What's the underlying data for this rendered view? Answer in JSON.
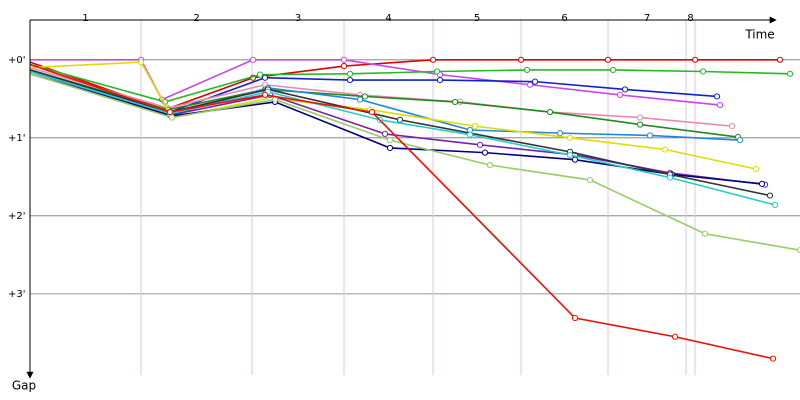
{
  "chart_data": {
    "type": "line",
    "x_label": "Time",
    "y_label": "Gap",
    "xlim": [
      0,
      770
    ],
    "ylim": [
      -0.51,
      4.04
    ],
    "laps": [
      {
        "value": 111,
        "label": "1"
      },
      {
        "value": 222,
        "label": "2"
      },
      {
        "value": 314,
        "label": "3"
      },
      {
        "value": 403,
        "label": "4"
      },
      {
        "value": 491,
        "label": "5"
      },
      {
        "value": 578,
        "label": "6"
      },
      {
        "value": 656,
        "label": "7"
      },
      {
        "value": 665,
        "label": "8"
      }
    ],
    "yticks": [
      {
        "value": 0,
        "label": "+0'"
      },
      {
        "value": 1,
        "label": "+1'"
      },
      {
        "value": 2,
        "label": "+2'"
      },
      {
        "value": 3,
        "label": "+3'"
      }
    ],
    "grid": true,
    "series": [
      {
        "color": "#e00000",
        "x": [
          0,
          135,
          223,
          314,
          403,
          491,
          578,
          665,
          750
        ],
        "values": [
          0.03,
          0.64,
          0.23,
          0.08,
          0,
          0,
          0,
          0,
          0
        ]
      },
      {
        "color": "#cc44ee",
        "x": [
          0,
          111,
          132,
          223,
          314,
          410,
          500,
          590,
          690
        ],
        "values": [
          0,
          0,
          0.51,
          0,
          0,
          0.19,
          0.32,
          0.45,
          0.58
        ]
      },
      {
        "color": "#22bb22",
        "x": [
          0,
          135,
          230,
          320,
          407,
          497,
          583,
          673,
          760
        ],
        "values": [
          0.06,
          0.54,
          0.19,
          0.18,
          0.15,
          0.13,
          0.13,
          0.15,
          0.18
        ]
      },
      {
        "color": "#1020cc",
        "x": [
          0,
          140,
          235,
          320,
          410,
          505,
          595,
          687
        ],
        "values": [
          0.13,
          0.67,
          0.23,
          0.26,
          0.26,
          0.28,
          0.38,
          0.47
        ]
      },
      {
        "color": "#ee88aa",
        "x": [
          0,
          138,
          235,
          330,
          430,
          520,
          610,
          702
        ],
        "values": [
          0.1,
          0.62,
          0.32,
          0.45,
          0.54,
          0.67,
          0.74,
          0.85
        ]
      },
      {
        "color": "#228822",
        "x": [
          0,
          138,
          235,
          335,
          425,
          520,
          610,
          708
        ],
        "values": [
          0.13,
          0.64,
          0.38,
          0.47,
          0.54,
          0.67,
          0.83,
          0.99
        ]
      },
      {
        "color": "#2288dd",
        "x": [
          0,
          140,
          238,
          330,
          440,
          530,
          620,
          710
        ],
        "values": [
          0.15,
          0.71,
          0.36,
          0.51,
          0.9,
          0.94,
          0.97,
          1.03
        ]
      },
      {
        "color": "#dddd00",
        "x": [
          0,
          111,
          142,
          240,
          340,
          445,
          540,
          635,
          726
        ],
        "values": [
          0.1,
          0.03,
          0.74,
          0.49,
          0.64,
          0.85,
          1.0,
          1.15,
          1.4
        ]
      },
      {
        "color": "#7722aa",
        "x": [
          0,
          140,
          240,
          355,
          450,
          545,
          640,
          735
        ],
        "values": [
          0.15,
          0.71,
          0.45,
          0.95,
          1.09,
          1.22,
          1.45,
          1.6
        ]
      },
      {
        "color": "#000080",
        "x": [
          0,
          142,
          245,
          360,
          455,
          545,
          642,
          732
        ],
        "values": [
          0.18,
          0.72,
          0.54,
          1.13,
          1.19,
          1.28,
          1.47,
          1.59
        ]
      },
      {
        "color": "#333333",
        "x": [
          0,
          140,
          238,
          370,
          540,
          640,
          740
        ],
        "values": [
          0.13,
          0.67,
          0.38,
          0.77,
          1.18,
          1.47,
          1.74
        ]
      },
      {
        "color": "#22cccc",
        "x": [
          0,
          140,
          238,
          350,
          440,
          540,
          640,
          745
        ],
        "values": [
          0.15,
          0.69,
          0.41,
          0.77,
          0.96,
          1.22,
          1.51,
          1.86
        ]
      },
      {
        "color": "#99cc66",
        "x": [
          0,
          142,
          245,
          360,
          460,
          560,
          675,
          770
        ],
        "values": [
          0.18,
          0.74,
          0.51,
          1.03,
          1.35,
          1.54,
          2.23,
          2.44
        ]
      },
      {
        "color": "#ee1100",
        "x": [
          0,
          140,
          235,
          342,
          545,
          645,
          743
        ],
        "values": [
          0.06,
          0.67,
          0.45,
          0.67,
          3.31,
          3.55,
          3.83
        ]
      }
    ]
  }
}
